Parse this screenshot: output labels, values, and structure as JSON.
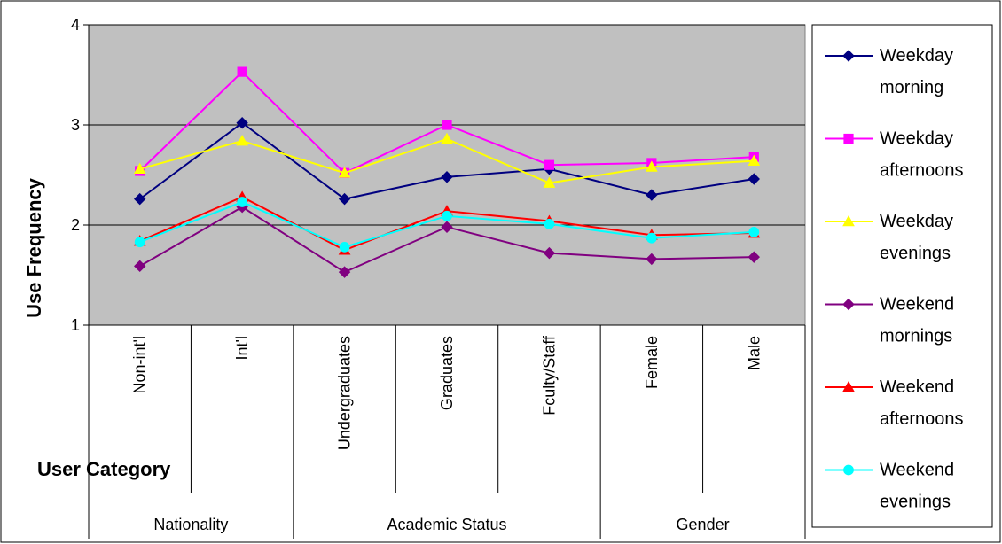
{
  "chart_data": {
    "type": "line",
    "xlabel": "User Category",
    "ylabel": "Use Frequency",
    "ylim": [
      1,
      4
    ],
    "yticks": [
      1,
      2,
      3,
      4
    ],
    "grid": true,
    "legend_position": "right",
    "categories": [
      "Non-int'l",
      "Int'l",
      "Undergraduates",
      "Graduates",
      "Fculty/Staff",
      "Female",
      "Male"
    ],
    "groups": [
      {
        "label": "Nationality",
        "span": 2
      },
      {
        "label": "Academic Status",
        "span": 3
      },
      {
        "label": "Gender",
        "span": 2
      }
    ],
    "series": [
      {
        "name": "Weekday morning",
        "legend_lines": [
          "Weekday",
          "morning"
        ],
        "color": "#000080",
        "marker": "diamond",
        "values": [
          2.26,
          3.02,
          2.26,
          2.48,
          2.56,
          2.3,
          2.46
        ]
      },
      {
        "name": "Weekday afternoons",
        "legend_lines": [
          "Weekday",
          "afternoons"
        ],
        "color": "#ff00ff",
        "marker": "square",
        "values": [
          2.54,
          3.53,
          2.52,
          3.0,
          2.6,
          2.62,
          2.68
        ]
      },
      {
        "name": "Weekday evenings",
        "legend_lines": [
          "Weekday",
          "evenings"
        ],
        "color": "#ffff00",
        "marker": "triangle",
        "values": [
          2.56,
          2.84,
          2.52,
          2.86,
          2.42,
          2.58,
          2.64
        ]
      },
      {
        "name": "Weekend mornings",
        "legend_lines": [
          "Weekend",
          "mornings"
        ],
        "color": "#800080",
        "marker": "diamond",
        "values": [
          1.59,
          2.18,
          1.53,
          1.98,
          1.72,
          1.66,
          1.68
        ]
      },
      {
        "name": "Weekend afternoons",
        "legend_lines": [
          "Weekend",
          "afternoons"
        ],
        "color": "#ff0000",
        "marker": "triangle",
        "values": [
          1.84,
          2.28,
          1.75,
          2.14,
          2.04,
          1.9,
          1.92
        ]
      },
      {
        "name": "Weekend evenings",
        "legend_lines": [
          "Weekend",
          "evenings"
        ],
        "color": "#00ffff",
        "marker": "circle",
        "values": [
          1.83,
          2.23,
          1.78,
          2.09,
          2.01,
          1.87,
          1.93
        ]
      }
    ],
    "colors": {
      "plot_background": "#c0c0c0",
      "grid": "#000000"
    }
  }
}
